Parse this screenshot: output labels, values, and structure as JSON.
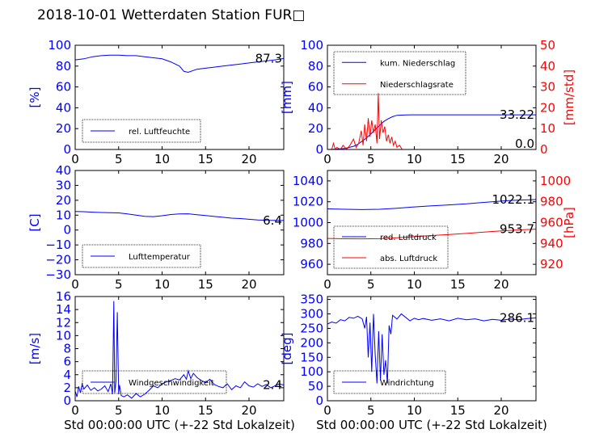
{
  "title": "2018-10-01 Wetterdaten Station FUR□",
  "colors": {
    "primary": "#0000ff",
    "secondary": "#ff0000",
    "weak": "#6a6aff"
  },
  "chart_data": [
    {
      "id": "humidity",
      "type": "line",
      "xlabel": "",
      "ylabel": "[%]",
      "xlim": [
        0,
        24
      ],
      "ylim": [
        0,
        100
      ],
      "xticks": [
        0,
        5,
        10,
        15,
        20
      ],
      "yticks": [
        0,
        20,
        40,
        60,
        80,
        100
      ],
      "last_value": "87.3",
      "legend": [
        "rel. Luftfeuchte"
      ],
      "series": [
        {
          "name": "rel. Luftfeuchte",
          "color": "#0000ff",
          "x": [
            0,
            1,
            2,
            3,
            4,
            5,
            6,
            7,
            8,
            9,
            10,
            11,
            12,
            12.5,
            13,
            14,
            15,
            16,
            17,
            18,
            19,
            20,
            21,
            22,
            23,
            24
          ],
          "y": [
            86,
            87,
            89,
            90,
            90.5,
            90.5,
            90,
            90,
            89,
            88,
            87,
            84,
            80,
            75,
            74,
            77,
            78,
            79,
            80,
            81,
            82,
            83,
            84,
            85,
            86,
            87.3
          ]
        }
      ]
    },
    {
      "id": "precipitation",
      "type": "line",
      "xlabel": "",
      "ylabel": "[mm]",
      "ylabel2": "[mm/std]",
      "xlim": [
        0,
        24
      ],
      "ylim": [
        0,
        100
      ],
      "ylim2": [
        0,
        50
      ],
      "xticks": [
        0,
        5,
        10,
        15,
        20
      ],
      "yticks": [
        0,
        20,
        40,
        60,
        80,
        100
      ],
      "yticks2": [
        0,
        10,
        20,
        30,
        40,
        50
      ],
      "last_value": "33.22",
      "last_value2": "0.0",
      "legend": [
        "kum. Niederschlag",
        "Niederschlagsrate"
      ],
      "series": [
        {
          "name": "kum. Niederschlag",
          "color": "#0000ff",
          "axis": "left",
          "x": [
            0,
            1,
            2,
            3,
            3.5,
            4,
            4.5,
            5,
            5.5,
            6,
            6.5,
            7,
            7.5,
            8,
            9,
            10,
            24
          ],
          "y": [
            0,
            0.3,
            1,
            3,
            5,
            8,
            11,
            15,
            19,
            23,
            27,
            29.5,
            31.5,
            32.8,
            33.2,
            33.22,
            33.22
          ]
        },
        {
          "name": "Niederschlagsrate",
          "color": "#ff0000",
          "axis": "right",
          "x": [
            0.5,
            0.7,
            0.9,
            1.1,
            1.5,
            1.8,
            2.2,
            2.6,
            3.0,
            3.3,
            3.6,
            3.9,
            4.1,
            4.3,
            4.5,
            4.7,
            4.9,
            5.1,
            5.3,
            5.5,
            5.7,
            5.85,
            6.0,
            6.2,
            6.4,
            6.6,
            6.8,
            7.0,
            7.2,
            7.4,
            7.6,
            7.8,
            8.0,
            8.3,
            8.6,
            9.0,
            24
          ],
          "y": [
            0,
            3,
            0,
            1,
            0,
            2,
            0,
            2,
            5,
            1,
            3,
            9,
            2,
            12,
            4,
            15,
            6,
            14,
            8,
            12,
            3,
            27,
            5,
            14,
            8,
            11,
            4,
            7,
            3,
            6,
            2,
            4,
            1,
            2,
            0,
            0,
            0
          ]
        }
      ]
    },
    {
      "id": "temperature",
      "type": "line",
      "xlabel": "",
      "ylabel": "[C]",
      "xlim": [
        0,
        24
      ],
      "ylim": [
        -30,
        40
      ],
      "xticks": [
        0,
        5,
        10,
        15,
        20
      ],
      "yticks": [
        -30,
        -20,
        -10,
        0,
        10,
        20,
        30,
        40
      ],
      "last_value": "6.4",
      "legend": [
        "Lufttemperatur"
      ],
      "series": [
        {
          "name": "Lufttemperatur",
          "color": "#0000ff",
          "x": [
            0,
            1,
            2,
            3,
            4,
            5,
            6,
            7,
            8,
            9,
            10,
            11,
            12,
            13,
            14,
            15,
            16,
            17,
            18,
            19,
            20,
            21,
            22,
            23,
            24
          ],
          "y": [
            12.5,
            12.3,
            12,
            11.8,
            11.6,
            11.5,
            10.8,
            10,
            9.2,
            9.0,
            9.6,
            10.4,
            10.8,
            10.9,
            10.3,
            9.8,
            9.1,
            8.6,
            8.0,
            7.7,
            7.2,
            6.8,
            6.6,
            6.5,
            6.4
          ]
        }
      ]
    },
    {
      "id": "pressure",
      "type": "line",
      "xlabel": "",
      "ylabel": "",
      "ylabel2": "[hPa]",
      "xlim": [
        0,
        24
      ],
      "ylim": [
        950,
        1050
      ],
      "ylim2": [
        910,
        1010
      ],
      "xticks": [
        0,
        5,
        10,
        15,
        20
      ],
      "yticks": [
        960,
        980,
        1000,
        1020,
        1040
      ],
      "yticks2": [
        920,
        940,
        960,
        980,
        1000
      ],
      "last_value": "1022.1",
      "last_value2": "953.7",
      "legend": [
        "red. Luftdruck",
        "abs. Luftdruck"
      ],
      "series": [
        {
          "name": "red. Luftdruck",
          "color": "#0000ff",
          "axis": "left",
          "x": [
            0,
            2,
            4,
            6,
            8,
            10,
            12,
            14,
            16,
            18,
            20,
            22,
            24
          ],
          "y": [
            1013.2,
            1012.8,
            1012.5,
            1012.8,
            1013.8,
            1015,
            1016.1,
            1017,
            1018,
            1019.4,
            1020.6,
            1021.6,
            1022.1
          ]
        },
        {
          "name": "abs. Luftdruck",
          "color": "#ff0000",
          "axis": "right",
          "x": [
            0,
            2,
            4,
            6,
            8,
            10,
            12,
            14,
            16,
            18,
            20,
            22,
            24
          ],
          "y": [
            944.8,
            944.5,
            944.4,
            944.6,
            945.4,
            946.5,
            947.6,
            948.6,
            949.6,
            950.9,
            952.0,
            953.0,
            953.7
          ]
        }
      ]
    },
    {
      "id": "windspeed",
      "type": "line",
      "xlabel": "Std 00:00:00 UTC (+-22 Std Lokalzeit)",
      "ylabel": "[m/s]",
      "xlim": [
        0,
        24
      ],
      "ylim": [
        0,
        16
      ],
      "xticks": [
        0,
        5,
        10,
        15,
        20
      ],
      "yticks": [
        0,
        2,
        4,
        6,
        8,
        10,
        12,
        14,
        16
      ],
      "last_value": "2.4",
      "legend": [
        "Windgeschwindigkeit"
      ],
      "series": [
        {
          "name": "Windgeschwindigkeit",
          "color": "#0000ff",
          "x": [
            0,
            0.2,
            0.4,
            0.6,
            0.8,
            1.0,
            1.4,
            1.8,
            2.2,
            2.6,
            3.0,
            3.4,
            3.8,
            4.1,
            4.3,
            4.45,
            4.55,
            4.7,
            4.85,
            5.0,
            5.1,
            5.3,
            5.6,
            6.0,
            6.5,
            7.0,
            7.5,
            8.0,
            8.5,
            9.0,
            9.5,
            10.0,
            10.5,
            11.0,
            11.5,
            12.0,
            12.5,
            12.8,
            13.0,
            13.3,
            13.6,
            14.0,
            14.5,
            15.0,
            15.5,
            16.0,
            16.5,
            17.0,
            17.5,
            18.0,
            18.5,
            19.0,
            19.5,
            20.0,
            20.5,
            21.0,
            21.5,
            22.0,
            22.5,
            23.0,
            23.5,
            24.0
          ],
          "y": [
            1.5,
            0.6,
            2.2,
            1.2,
            2.6,
            1.8,
            2.4,
            1.6,
            2.0,
            1.5,
            1.8,
            2.3,
            1.4,
            2.6,
            1.0,
            15.3,
            1.2,
            3.0,
            13.6,
            1.0,
            2.4,
            0.8,
            0.6,
            0.9,
            0.4,
            1.1,
            0.6,
            1.0,
            1.6,
            2.3,
            2.0,
            2.6,
            2.9,
            3.1,
            3.4,
            3.2,
            4.0,
            3.3,
            4.6,
            3.4,
            4.2,
            3.6,
            3.1,
            2.8,
            3.3,
            2.5,
            2.2,
            2.0,
            2.6,
            1.7,
            2.3,
            2.0,
            2.9,
            2.3,
            2.1,
            2.6,
            2.2,
            2.5,
            2.0,
            2.3,
            2.6,
            2.4
          ]
        }
      ]
    },
    {
      "id": "winddirection",
      "type": "line",
      "xlabel": "Std 00:00:00 UTC (+-22 Std Lokalzeit)",
      "ylabel": "[deg]",
      "xlim": [
        0,
        24
      ],
      "ylim": [
        0,
        360
      ],
      "xticks": [
        0,
        5,
        10,
        15,
        20
      ],
      "yticks": [
        0,
        50,
        100,
        150,
        200,
        250,
        300,
        350
      ],
      "last_value": "286.1",
      "legend": [
        "Windrichtung"
      ],
      "series": [
        {
          "name": "Windrichtung",
          "color": "#0000ff",
          "x": [
            0,
            0.5,
            1.0,
            1.5,
            2.0,
            2.5,
            3.0,
            3.5,
            4.0,
            4.3,
            4.5,
            4.7,
            4.9,
            5.1,
            5.3,
            5.5,
            5.7,
            5.9,
            6.1,
            6.3,
            6.5,
            6.7,
            6.9,
            7.1,
            7.3,
            7.5,
            8.0,
            8.5,
            9.0,
            9.5,
            10.0,
            10.5,
            11.0,
            12.0,
            13.0,
            14.0,
            15.0,
            16.0,
            17.0,
            18.0,
            19.0,
            20.0,
            21.0,
            22.0,
            23.0,
            24.0
          ],
          "y": [
            265,
            272,
            268,
            280,
            276,
            288,
            285,
            292,
            283,
            250,
            290,
            150,
            270,
            100,
            300,
            160,
            60,
            240,
            70,
            230,
            90,
            140,
            60,
            260,
            230,
            295,
            282,
            300,
            288,
            276,
            285,
            280,
            284,
            278,
            283,
            276,
            285,
            280,
            283,
            276,
            281,
            278,
            282,
            280,
            284,
            286.1
          ]
        }
      ]
    }
  ]
}
